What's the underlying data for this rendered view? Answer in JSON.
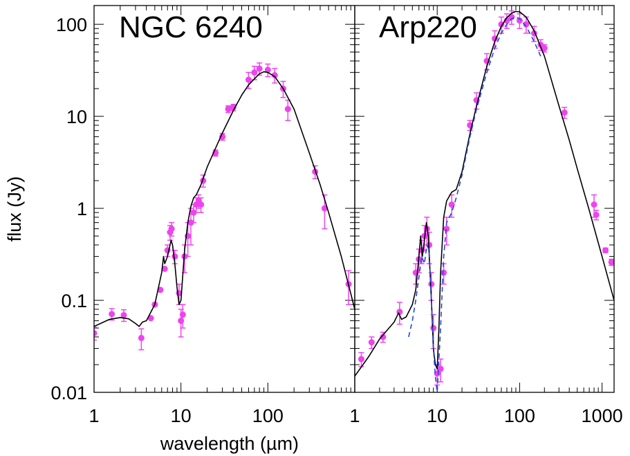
{
  "figure": {
    "xlabel": "wavelength (µm)",
    "ylabel": "flux (Jy)"
  },
  "chart_data": [
    {
      "type": "scatter",
      "title": "NGC 6240",
      "xscale": "log",
      "yscale": "log",
      "xlim": [
        1,
        1000
      ],
      "ylim": [
        0.01,
        160
      ],
      "xticks": [
        1,
        10,
        100
      ],
      "xtick_labels": [
        "1",
        "10",
        "100"
      ],
      "yticks": [
        0.01,
        0.1,
        1,
        10,
        100
      ],
      "ytick_labels": [
        "0.01",
        "0.1",
        "1",
        "10",
        "100"
      ],
      "colors": {
        "data": "#ee44ee",
        "model": "#000000"
      },
      "series": [
        {
          "kind": "points",
          "x": [
            1.0,
            1.6,
            2.2,
            3.5,
            4.5,
            5.0,
            5.8,
            6.5,
            7.0,
            7.5,
            7.8,
            8.5,
            9.5,
            10.0,
            10.5,
            11.0,
            12.0,
            13.0,
            14.0,
            15.0,
            16.0,
            17.0,
            18.0,
            25.0,
            30.0,
            35.0,
            40.0,
            60.0,
            70.0,
            80.0,
            100.0,
            120.0,
            150.0,
            170.0,
            350.0,
            450.0,
            850.0
          ],
          "y": [
            0.044,
            0.071,
            0.069,
            0.039,
            0.064,
            0.09,
            0.13,
            0.22,
            0.35,
            0.55,
            0.6,
            0.3,
            0.12,
            0.06,
            0.07,
            0.3,
            0.5,
            0.7,
            0.9,
            1.1,
            1.2,
            1.1,
            2.0,
            4.0,
            6.0,
            12.0,
            12.5,
            25.0,
            30.0,
            33.0,
            32.0,
            28.0,
            20.0,
            12.0,
            2.5,
            1.0,
            0.15
          ],
          "yerr": [
            0.007,
            0.01,
            0.01,
            0.01,
            0,
            0,
            0,
            0,
            0.05,
            0.1,
            0.1,
            0.05,
            0.03,
            0.02,
            0.02,
            0.1,
            0.2,
            0.3,
            0.2,
            0.2,
            0.2,
            0.2,
            0.3,
            0.3,
            0.5,
            1.0,
            1.0,
            5.0,
            5.0,
            5.0,
            5.0,
            5.0,
            4.0,
            3.0,
            0.4,
            0.4,
            0.06
          ]
        },
        {
          "kind": "line",
          "x": [
            1.0,
            1.5,
            2.0,
            2.5,
            3.0,
            3.3,
            3.6,
            4.0,
            5.0,
            6.0,
            6.3,
            6.5,
            7.0,
            7.7,
            8.0,
            8.5,
            9.0,
            9.5,
            10.0,
            11.0,
            12.0,
            13.0,
            14.0,
            15.0,
            17.0,
            20.0,
            25.0,
            30.0,
            40.0,
            50.0,
            60.0,
            80.0,
            90.0,
            100.0,
            120.0,
            150.0,
            200.0,
            300.0,
            400.0,
            500.0,
            700.0,
            1000.0
          ],
          "y": [
            0.052,
            0.062,
            0.065,
            0.063,
            0.056,
            0.052,
            0.058,
            0.06,
            0.09,
            0.2,
            0.3,
            0.25,
            0.3,
            0.45,
            0.4,
            0.25,
            0.14,
            0.09,
            0.1,
            0.35,
            0.7,
            1.05,
            1.3,
            1.4,
            1.8,
            2.8,
            4.5,
            6.6,
            11.5,
            17.0,
            22.0,
            29.0,
            30.5,
            30.0,
            27.0,
            20.0,
            12.0,
            4.0,
            1.8,
            0.9,
            0.3,
            0.08
          ]
        }
      ]
    },
    {
      "type": "scatter",
      "title": "Arp220",
      "xscale": "log",
      "yscale": "log",
      "xlim": [
        1,
        1400
      ],
      "ylim": [
        0.01,
        160
      ],
      "xticks": [
        1,
        10,
        100,
        1000
      ],
      "xtick_labels": [
        "1",
        "10",
        "100",
        "1000"
      ],
      "yticks": [
        0.01,
        0.1,
        1,
        10,
        100
      ],
      "ytick_labels": [
        "",
        "",
        "",
        "",
        ""
      ],
      "colors": {
        "data": "#ee44ee",
        "model": "#000000",
        "alt_model": "#2244dd"
      },
      "series": [
        {
          "kind": "points",
          "x": [
            1.2,
            1.6,
            2.2,
            3.5,
            5.5,
            6.0,
            6.5,
            7.0,
            7.5,
            8.0,
            8.5,
            9.0,
            10.0,
            11.0,
            12.0,
            13.0,
            15.0,
            25.0,
            30.0,
            40.0,
            50.0,
            60.0,
            70.0,
            80.0,
            100.0,
            120.0,
            150.0,
            180.0,
            200.0,
            350.0,
            800.0,
            850.0,
            1100.0,
            1300.0
          ],
          "y": [
            0.023,
            0.035,
            0.04,
            0.075,
            0.2,
            0.28,
            0.35,
            0.5,
            0.6,
            0.4,
            0.15,
            0.05,
            0.016,
            0.018,
            0.2,
            0.6,
            1.1,
            8.0,
            15.0,
            40.0,
            70.0,
            100.0,
            110.0,
            120.0,
            110.0,
            100.0,
            80.0,
            60.0,
            55.0,
            11.0,
            1.1,
            0.85,
            0.35,
            0.26
          ],
          "yerr": [
            0.004,
            0.005,
            0.005,
            0.02,
            0.05,
            0.08,
            0.1,
            0.15,
            0.2,
            0.15,
            0.05,
            0.02,
            0.004,
            0.005,
            0.05,
            0.2,
            0.3,
            1.0,
            3.0,
            8.0,
            15.0,
            20.0,
            20.0,
            20.0,
            20.0,
            20.0,
            15.0,
            8.0,
            5.0,
            1.5,
            0.3,
            0.1,
            0.02,
            0.02
          ]
        },
        {
          "kind": "line",
          "x": [
            1.0,
            1.5,
            2.0,
            3.0,
            3.4,
            3.7,
            4.2,
            5.0,
            5.5,
            6.0,
            6.3,
            6.6,
            7.0,
            7.4,
            7.8,
            8.2,
            8.6,
            9.0,
            9.5,
            10.0,
            10.5,
            11.0,
            12.0,
            13.0,
            15.0,
            17.0,
            20.0,
            25.0,
            30.0,
            40.0,
            50.0,
            60.0,
            70.0,
            80.0,
            90.0,
            100.0,
            120.0,
            150.0,
            200.0,
            300.0,
            400.0,
            500.0,
            700.0,
            1000.0,
            1400.0
          ],
          "y": [
            0.015,
            0.025,
            0.038,
            0.058,
            0.073,
            0.062,
            0.066,
            0.09,
            0.13,
            0.3,
            0.5,
            0.3,
            0.45,
            0.7,
            0.5,
            0.2,
            0.08,
            0.03,
            0.02,
            0.018,
            0.05,
            0.2,
            0.8,
            1.2,
            1.5,
            1.6,
            2.5,
            6.5,
            13.0,
            35.0,
            65.0,
            95.0,
            118.0,
            132.0,
            138.0,
            137.0,
            120.0,
            85.0,
            45.0,
            13.0,
            5.5,
            2.7,
            0.95,
            0.3,
            0.1
          ]
        },
        {
          "kind": "dashed-line",
          "x": [
            4.5,
            5.0,
            5.5,
            6.0,
            6.5,
            7.0,
            7.5,
            8.0,
            8.5,
            9.0,
            9.5,
            10.0,
            11.0,
            12.0,
            13.0,
            15.0,
            17.0,
            20.0,
            25.0,
            30.0,
            40.0,
            50.0,
            60.0,
            70.0,
            80.0,
            90.0,
            100.0,
            120.0,
            150.0,
            180.0
          ],
          "y": [
            0.04,
            0.06,
            0.1,
            0.18,
            0.3,
            0.25,
            0.4,
            0.35,
            0.1,
            0.03,
            0.015,
            0.01,
            0.05,
            0.3,
            0.7,
            0.9,
            1.3,
            2.3,
            6.0,
            12.0,
            30.0,
            55.0,
            80.0,
            100.0,
            115.0,
            120.0,
            115.0,
            95.0,
            65.0,
            45.0
          ]
        }
      ]
    }
  ]
}
